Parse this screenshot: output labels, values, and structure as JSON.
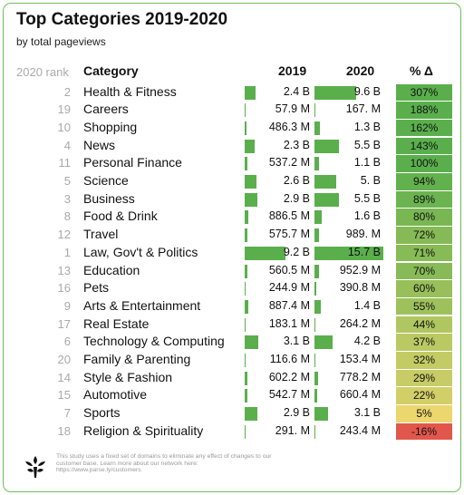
{
  "title": "Top Categories 2019-2020",
  "subtitle": "by total pageviews",
  "headers": {
    "rank": "2020 rank",
    "category": "Category",
    "y2019": "2019",
    "y2020": "2020",
    "pct": "% Δ"
  },
  "footer": "This study uses a fixed set of domains to eliminate any effect of changes to our customer base. Learn more about our network here: https://www.parse.ly/customers",
  "colors": {
    "bar": "#5aaf4c",
    "border": "#6fbe5a",
    "pct_high": "#5aaf4c",
    "pct_mid": "#d6cf6a",
    "pct_low": "#f4d870",
    "pct_negative": "#e2574c"
  },
  "chart_data": {
    "type": "table",
    "title": "Top Categories 2019-2020",
    "subtitle": "by total pageviews",
    "rows": [
      {
        "rank": "2",
        "category": "Health & Fitness",
        "v2019": 2400000000.0,
        "v2020": 9600000000.0,
        "label2019": "2.4 B",
        "label2020": "9.6 B",
        "pct": 307,
        "pct_label": "307%"
      },
      {
        "rank": "19",
        "category": "Careers",
        "v2019": 57900000.0,
        "v2020": 167000000.0,
        "label2019": "57.9 M",
        "label2020": "167. M",
        "pct": 188,
        "pct_label": "188%"
      },
      {
        "rank": "10",
        "category": "Shopping",
        "v2019": 486300000.0,
        "v2020": 1300000000.0,
        "label2019": "486.3 M",
        "label2020": "1.3 B",
        "pct": 162,
        "pct_label": "162%"
      },
      {
        "rank": "4",
        "category": "News",
        "v2019": 2300000000.0,
        "v2020": 5500000000.0,
        "label2019": "2.3 B",
        "label2020": "5.5 B",
        "pct": 143,
        "pct_label": "143%"
      },
      {
        "rank": "11",
        "category": "Personal Finance",
        "v2019": 537200000.0,
        "v2020": 1100000000.0,
        "label2019": "537.2 M",
        "label2020": "1.1 B",
        "pct": 100,
        "pct_label": "100%"
      },
      {
        "rank": "5",
        "category": "Science",
        "v2019": 2600000000.0,
        "v2020": 5000000000.0,
        "label2019": "2.6 B",
        "label2020": "5. B",
        "pct": 94,
        "pct_label": "94%"
      },
      {
        "rank": "3",
        "category": "Business",
        "v2019": 2900000000.0,
        "v2020": 5500000000.0,
        "label2019": "2.9 B",
        "label2020": "5.5 B",
        "pct": 89,
        "pct_label": "89%"
      },
      {
        "rank": "8",
        "category": "Food & Drink",
        "v2019": 886500000.0,
        "v2020": 1600000000.0,
        "label2019": "886.5 M",
        "label2020": "1.6 B",
        "pct": 80,
        "pct_label": "80%"
      },
      {
        "rank": "12",
        "category": "Travel",
        "v2019": 575700000.0,
        "v2020": 989000000.0,
        "label2019": "575.7 M",
        "label2020": "989. M",
        "pct": 72,
        "pct_label": "72%"
      },
      {
        "rank": "1",
        "category": "Law, Gov't & Politics",
        "v2019": 9200000000.0,
        "v2020": 15700000000.0,
        "label2019": "9.2 B",
        "label2020": "15.7 B",
        "pct": 71,
        "pct_label": "71%"
      },
      {
        "rank": "13",
        "category": "Education",
        "v2019": 560500000.0,
        "v2020": 952900000.0,
        "label2019": "560.5 M",
        "label2020": "952.9 M",
        "pct": 70,
        "pct_label": "70%"
      },
      {
        "rank": "16",
        "category": "Pets",
        "v2019": 244900000.0,
        "v2020": 390800000.0,
        "label2019": "244.9 M",
        "label2020": "390.8 M",
        "pct": 60,
        "pct_label": "60%"
      },
      {
        "rank": "9",
        "category": "Arts & Entertainment",
        "v2019": 887400000.0,
        "v2020": 1400000000.0,
        "label2019": "887.4 M",
        "label2020": "1.4 B",
        "pct": 55,
        "pct_label": "55%"
      },
      {
        "rank": "17",
        "category": "Real Estate",
        "v2019": 183100000.0,
        "v2020": 264200000.0,
        "label2019": "183.1 M",
        "label2020": "264.2 M",
        "pct": 44,
        "pct_label": "44%"
      },
      {
        "rank": "6",
        "category": "Technology & Computing",
        "v2019": 3100000000.0,
        "v2020": 4200000000.0,
        "label2019": "3.1 B",
        "label2020": "4.2 B",
        "pct": 37,
        "pct_label": "37%"
      },
      {
        "rank": "20",
        "category": "Family & Parenting",
        "v2019": 116600000.0,
        "v2020": 153400000.0,
        "label2019": "116.6 M",
        "label2020": "153.4 M",
        "pct": 32,
        "pct_label": "32%"
      },
      {
        "rank": "14",
        "category": "Style & Fashion",
        "v2019": 602200000.0,
        "v2020": 778200000.0,
        "label2019": "602.2 M",
        "label2020": "778.2 M",
        "pct": 29,
        "pct_label": "29%"
      },
      {
        "rank": "15",
        "category": "Automotive",
        "v2019": 542700000.0,
        "v2020": 660400000.0,
        "label2019": "542.7 M",
        "label2020": "660.4 M",
        "pct": 22,
        "pct_label": "22%"
      },
      {
        "rank": "7",
        "category": "Sports",
        "v2019": 2900000000.0,
        "v2020": 3100000000.0,
        "label2019": "2.9 B",
        "label2020": "3.1 B",
        "pct": 5,
        "pct_label": "5%"
      },
      {
        "rank": "18",
        "category": "Religion & Spirituality",
        "v2019": 291000000.0,
        "v2020": 243400000.0,
        "label2019": "291. M",
        "label2020": "243.4 M",
        "pct": -16,
        "pct_label": "-16%"
      }
    ]
  }
}
